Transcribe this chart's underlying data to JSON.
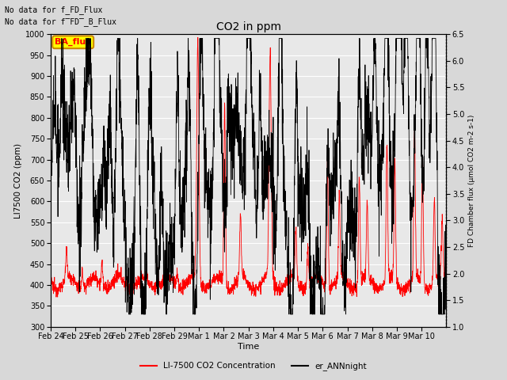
{
  "title": "CO2 in ppm",
  "xlabel": "Time",
  "ylabel_left": "LI7500 CO2 (ppm)",
  "ylabel_right": "FD Chamber flux (μmol CO2 m-2 s-1)",
  "ylim_left": [
    300,
    1000
  ],
  "ylim_right": [
    1.0,
    6.5
  ],
  "text_annotations": [
    "No data for f_FD_Flux",
    "No data for f̅FD̅_B_Flux"
  ],
  "ba_flux_label": "BA_flux",
  "legend_entries": [
    "LI-7500 CO2 Concentration",
    "er_ANNnight"
  ],
  "line_colors": [
    "red",
    "black"
  ],
  "background_color": "#d8d8d8",
  "plot_bg_color": "#e8e8e8",
  "grid_color": "white",
  "figsize": [
    6.4,
    4.8
  ],
  "dpi": 100
}
